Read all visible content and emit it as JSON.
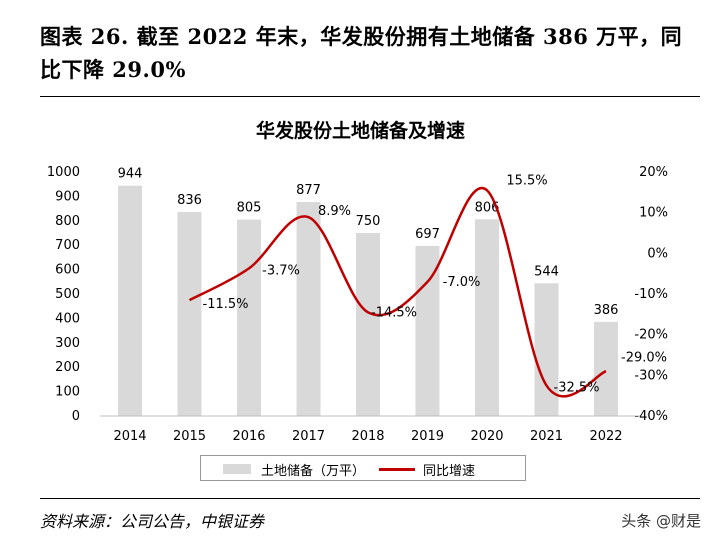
{
  "heading": "图表 26. 截至 2022 年末，华发股份拥有土地储备 386 万平，同比下降 29.0%",
  "chart_data": {
    "type": "bar+line",
    "title": "华发股份土地储备及增速",
    "categories": [
      "2014",
      "2015",
      "2016",
      "2017",
      "2018",
      "2019",
      "2020",
      "2021",
      "2022"
    ],
    "series": [
      {
        "name": "土地储备（万平）",
        "type": "bar",
        "axis": "left",
        "color": "#d9d9d9",
        "values": [
          944,
          836,
          805,
          877,
          750,
          697,
          806,
          544,
          386
        ],
        "labels": [
          "944",
          "836",
          "805",
          "877",
          "750",
          "697",
          "806",
          "544",
          "386"
        ]
      },
      {
        "name": "同比增速",
        "type": "line",
        "axis": "right",
        "color": "#c00000",
        "values": [
          null,
          -11.5,
          -3.7,
          8.9,
          -14.5,
          -7.0,
          15.5,
          -32.5,
          -29.0
        ],
        "labels": [
          "",
          "-11.5%",
          "-3.7%",
          "8.9%",
          "-14.5%",
          "-7.0%",
          "15.5%",
          "-32.5%",
          "-29.0%"
        ]
      }
    ],
    "y_left": {
      "min": 0,
      "max": 1000,
      "step": 100,
      "ticks": [
        "0",
        "100",
        "200",
        "300",
        "400",
        "500",
        "600",
        "700",
        "800",
        "900",
        "1000"
      ]
    },
    "y_right": {
      "min": -40,
      "max": 20,
      "step": 10,
      "ticks": [
        "-40%",
        "-30%",
        "-20%",
        "-10%",
        "0%",
        "10%",
        "20%"
      ]
    },
    "grid": false,
    "legend_position": "bottom"
  },
  "source": "资料来源：公司公告，中银证券",
  "watermark": "头条 @财是"
}
